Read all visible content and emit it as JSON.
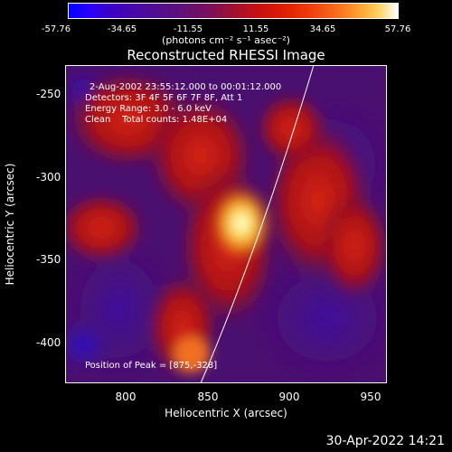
{
  "colorbar": {
    "ticks": [
      "-57.76",
      "-34.65",
      "-11.55",
      "11.55",
      "34.65",
      "57.76"
    ],
    "units": "(photons cm⁻² s⁻¹ asec⁻²)"
  },
  "title": "Reconstructed RHESSI Image",
  "info": {
    "time_range": "2-Aug-2002 23:55:12.000 to 00:01:12.000",
    "detectors": "Detectors: 3F 4F 5F 6F 7F 8F, Att 1",
    "energy": "Energy Range: 3.0 - 6.0 keV",
    "clean": "Clean    Total counts: 1.48E+04",
    "peak": "Position of Peak = [875,-328]"
  },
  "axes": {
    "xlabel": "Heliocentric X (arcsec)",
    "ylabel": "Heliocentric Y (arcsec)",
    "xticks": [
      "800",
      "850",
      "900",
      "950"
    ],
    "yticks": [
      "-250",
      "-300",
      "-350",
      "-400"
    ]
  },
  "timestamp": "30-Apr-2022 14:21"
}
